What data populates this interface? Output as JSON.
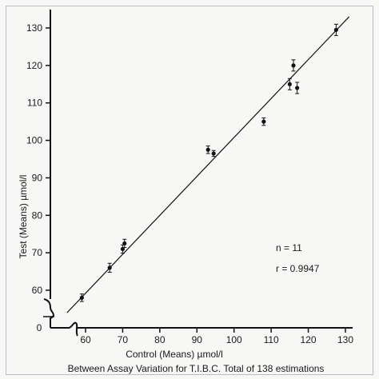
{
  "chart_data": {
    "type": "scatter",
    "title": "",
    "caption": "Between Assay Variation for T.I.B.C. Total of 138 estimations",
    "xlabel": "Control (Means) µmol/l",
    "ylabel": "Test (Means) µmol/l",
    "xlim": [
      50,
      130
    ],
    "ylim": [
      50,
      130
    ],
    "x_ticks": [
      60,
      70,
      80,
      90,
      100,
      110,
      120,
      130
    ],
    "y_ticks": [
      60,
      70,
      80,
      90,
      100,
      110,
      120,
      130
    ],
    "origin_label": "0",
    "axis_breaks": true,
    "grid": false,
    "points": [
      {
        "x": 59,
        "y": 58,
        "err": 1.0
      },
      {
        "x": 66.5,
        "y": 66,
        "err": 1.2
      },
      {
        "x": 70,
        "y": 71,
        "err": 1.1
      },
      {
        "x": 70.5,
        "y": 72.5,
        "err": 1.1
      },
      {
        "x": 93,
        "y": 97.5,
        "err": 1.0
      },
      {
        "x": 94.5,
        "y": 96.5,
        "err": 0.8
      },
      {
        "x": 108,
        "y": 105,
        "err": 1.0
      },
      {
        "x": 115,
        "y": 115,
        "err": 1.5
      },
      {
        "x": 116,
        "y": 120,
        "err": 1.5
      },
      {
        "x": 117,
        "y": 114,
        "err": 1.5
      },
      {
        "x": 127.5,
        "y": 129.5,
        "err": 1.5
      }
    ],
    "regression_line": {
      "x": [
        55,
        131
      ],
      "y": [
        54,
        133
      ]
    },
    "annotations": [
      "n = 11",
      "r = 0.9947"
    ]
  }
}
